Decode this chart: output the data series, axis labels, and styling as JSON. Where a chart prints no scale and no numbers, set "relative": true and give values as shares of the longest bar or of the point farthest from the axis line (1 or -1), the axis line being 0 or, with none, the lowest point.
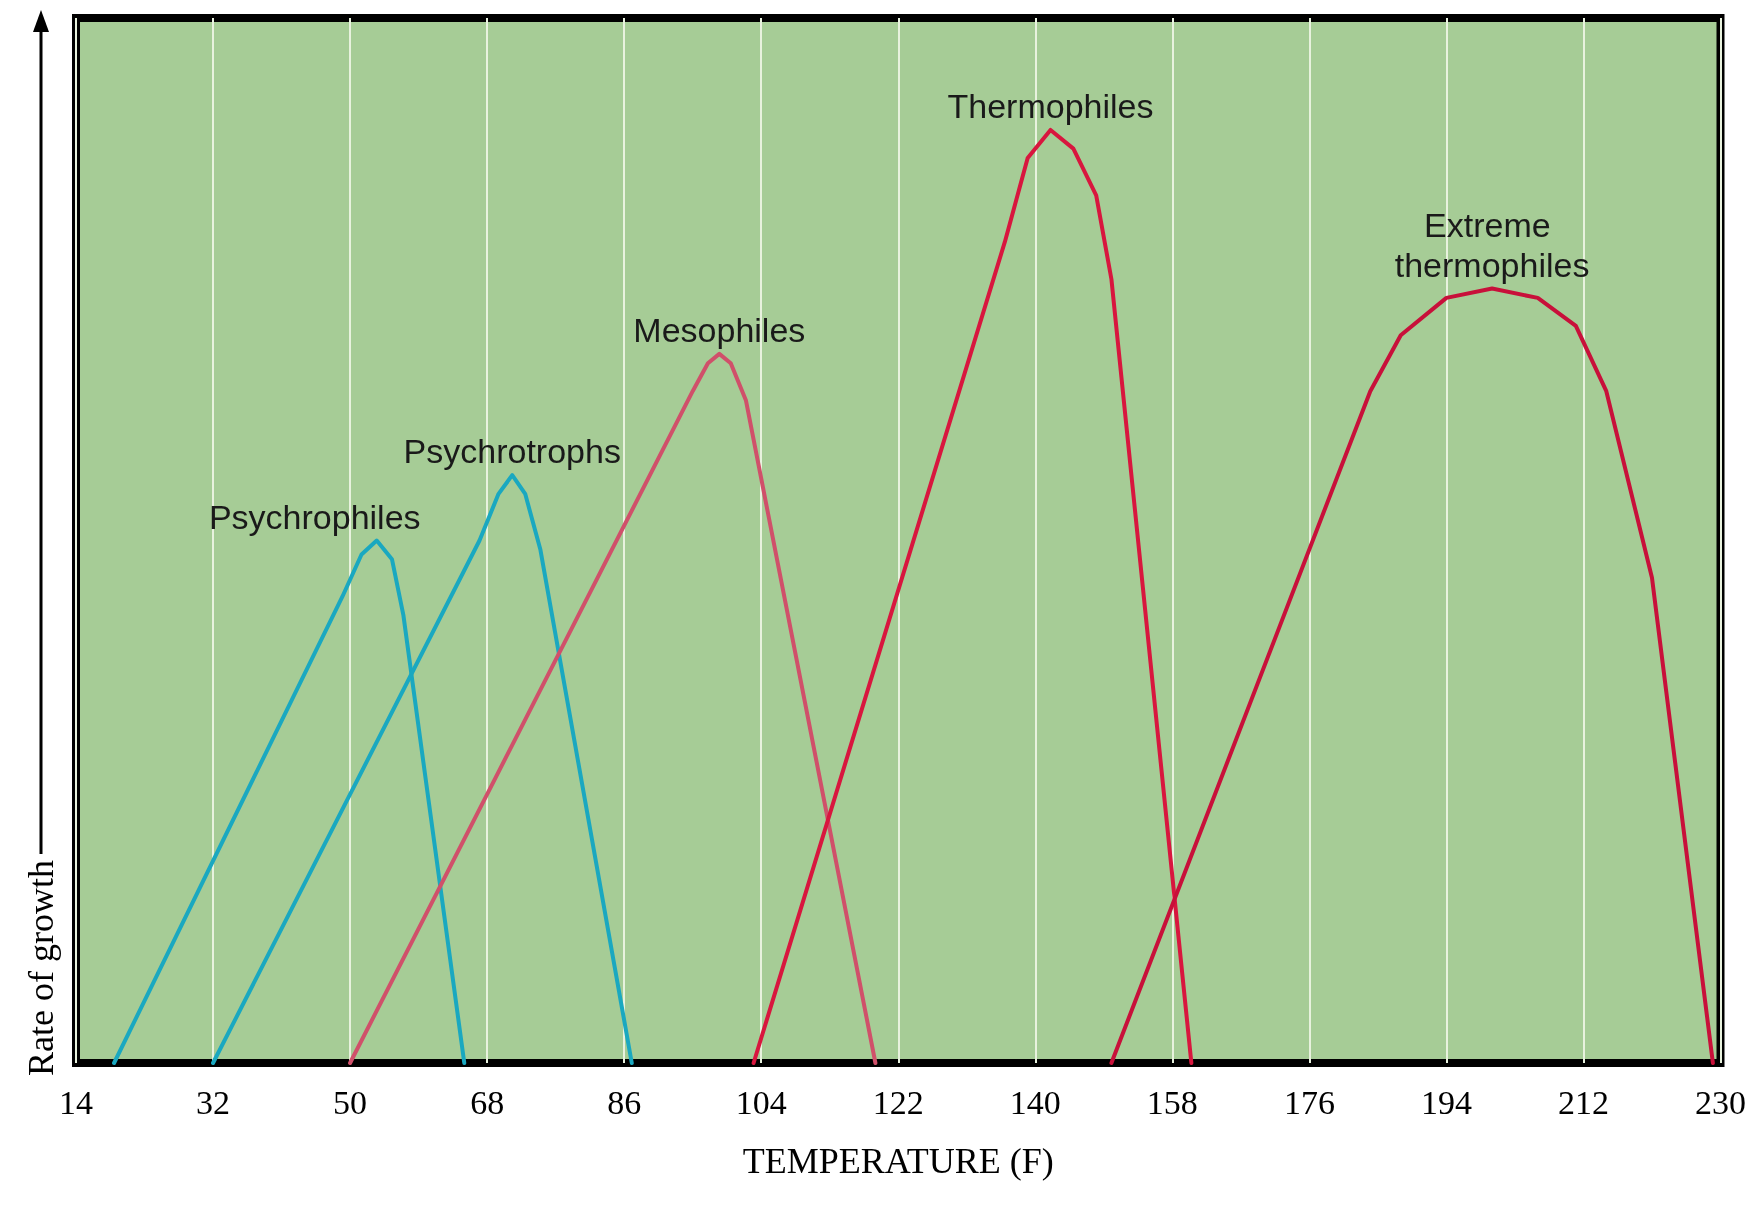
{
  "chart_data": {
    "type": "line",
    "relative": true,
    "xlabel": "TEMPERATURE (F)",
    "ylabel": "Rate of growth",
    "xlim": [
      14,
      230
    ],
    "xticks": [
      14,
      32,
      50,
      68,
      86,
      104,
      122,
      140,
      158,
      176,
      194,
      212,
      230
    ],
    "grid": "x",
    "marker": "none",
    "line_style": "solid",
    "legend": false,
    "series": [
      {
        "name": "Psychrophiles",
        "color": "#1aa8c0",
        "x": [
          19,
          49,
          51.5,
          53.5,
          55.5,
          57,
          65
        ],
        "values": [
          0,
          0.5,
          0.545,
          0.56,
          0.54,
          0.48,
          0
        ]
      },
      {
        "name": "Psychrotrophs",
        "color": "#1aa8c0",
        "x": [
          32,
          67,
          69.5,
          71.3,
          73,
          75,
          87
        ],
        "values": [
          0,
          0.56,
          0.61,
          0.63,
          0.61,
          0.55,
          0
        ]
      },
      {
        "name": "Mesophiles",
        "color": "#d0506a",
        "x": [
          50,
          95,
          97,
          98.5,
          100,
          102,
          119
        ],
        "values": [
          0,
          0.72,
          0.75,
          0.76,
          0.75,
          0.71,
          0
        ]
      },
      {
        "name": "Thermophiles",
        "color": "#d8163e",
        "x": [
          103,
          136,
          139,
          142,
          145,
          148,
          150,
          160.5
        ],
        "values": [
          0,
          0.88,
          0.97,
          1,
          0.98,
          0.93,
          0.84,
          0
        ]
      },
      {
        "name": "Extreme thermophiles",
        "color": "#c8103a",
        "x": [
          150,
          184,
          188,
          194,
          200,
          206,
          211,
          215,
          221,
          229
        ],
        "values": [
          0,
          0.72,
          0.78,
          0.82,
          0.83,
          0.82,
          0.79,
          0.72,
          0.52,
          0
        ]
      }
    ]
  }
}
